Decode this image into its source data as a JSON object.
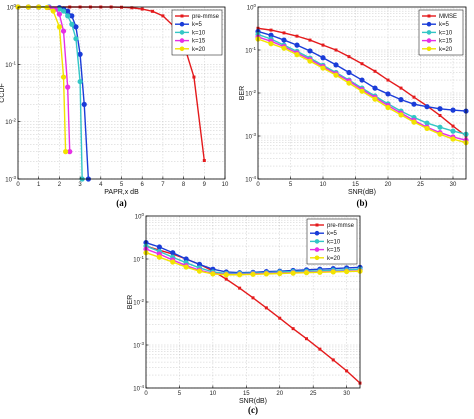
{
  "chart_data": [
    {
      "type": "line",
      "caption": "(a)",
      "xlabel": "PAPR,x dB",
      "ylabel": "CCDF",
      "xlim": [
        0,
        10
      ],
      "ylim": [
        0.001,
        1
      ],
      "yscale": "log",
      "xticks": [
        "0",
        "1",
        "2",
        "3",
        "4",
        "5",
        "6",
        "7",
        "8",
        "9",
        "10"
      ],
      "yticks": [
        {
          "v": 1,
          "base": "10",
          "exp": "0"
        },
        {
          "v": 0.1,
          "base": "10",
          "exp": "-1"
        },
        {
          "v": 0.01,
          "base": "10",
          "exp": "-2"
        },
        {
          "v": 0.001,
          "base": "10",
          "exp": "-3"
        }
      ],
      "grid": true,
      "legend_position": "top-right",
      "series": [
        {
          "name": "pre-mmse",
          "color": "#e41a1c",
          "marker": "square",
          "x": [
            0,
            0.5,
            1,
            1.5,
            2,
            2.5,
            3,
            3.5,
            4,
            4.5,
            5,
            5.5,
            6,
            6.5,
            7,
            7.5,
            8,
            8.5,
            9
          ],
          "y": [
            1,
            1,
            1,
            1,
            1,
            1,
            1,
            1,
            1,
            1,
            0.99,
            0.97,
            0.92,
            0.84,
            0.7,
            0.47,
            0.23,
            0.06,
            0.0021
          ]
        },
        {
          "name": "k=5",
          "color": "#1a3cd8",
          "marker": "circle",
          "x": [
            0,
            0.5,
            1,
            1.5,
            2,
            2.2,
            2.4,
            2.6,
            2.8,
            3,
            3.2,
            3.4
          ],
          "y": [
            1,
            1,
            1,
            1,
            0.97,
            0.93,
            0.85,
            0.7,
            0.45,
            0.15,
            0.02,
            0.001
          ]
        },
        {
          "name": "k=10",
          "color": "#33c6c6",
          "marker": "circle",
          "x": [
            0,
            0.5,
            1,
            1.5,
            2,
            2.2,
            2.4,
            2.6,
            2.8,
            3,
            3.1
          ],
          "y": [
            1,
            1,
            1,
            1,
            0.92,
            0.85,
            0.7,
            0.5,
            0.28,
            0.05,
            0.001
          ]
        },
        {
          "name": "k=15",
          "color": "#e62fe6",
          "marker": "circle",
          "x": [
            0,
            0.5,
            1,
            1.5,
            1.8,
            2,
            2.2,
            2.4,
            2.5
          ],
          "y": [
            1,
            1,
            1,
            0.98,
            0.92,
            0.75,
            0.38,
            0.04,
            0.003
          ]
        },
        {
          "name": "k=20",
          "color": "#f2e300",
          "marker": "circle",
          "x": [
            0,
            0.5,
            1,
            1.4,
            1.7,
            2,
            2.2,
            2.3
          ],
          "y": [
            1,
            1,
            1,
            0.98,
            0.85,
            0.45,
            0.06,
            0.003
          ]
        }
      ]
    },
    {
      "type": "line",
      "caption": "(b)",
      "xlabel": "SNR(dB)",
      "ylabel": "BER",
      "xlim": [
        0,
        32
      ],
      "ylim": [
        0.0001,
        1
      ],
      "yscale": "log",
      "xticks": [
        "0",
        "5",
        "10",
        "15",
        "20",
        "25",
        "30"
      ],
      "yticks": [
        {
          "v": 1,
          "base": "10",
          "exp": "0"
        },
        {
          "v": 0.1,
          "base": "10",
          "exp": "-1"
        },
        {
          "v": 0.01,
          "base": "10",
          "exp": "-2"
        },
        {
          "v": 0.001,
          "base": "10",
          "exp": "-3"
        },
        {
          "v": 0.0001,
          "base": "10",
          "exp": "-4"
        }
      ],
      "grid": true,
      "legend_position": "top-right",
      "series": [
        {
          "name": "MMSE",
          "color": "#e41a1c",
          "marker": "square",
          "x": [
            0,
            2,
            4,
            6,
            8,
            10,
            12,
            14,
            16,
            18,
            20,
            22,
            24,
            26,
            28,
            30,
            32
          ],
          "y": [
            0.32,
            0.29,
            0.25,
            0.21,
            0.17,
            0.13,
            0.1,
            0.07,
            0.048,
            0.032,
            0.02,
            0.013,
            0.008,
            0.005,
            0.003,
            0.0017,
            0.001
          ]
        },
        {
          "name": "k=5",
          "color": "#1a3cd8",
          "marker": "circle",
          "x": [
            0,
            2,
            4,
            6,
            8,
            10,
            12,
            14,
            16,
            18,
            20,
            22,
            24,
            26,
            28,
            30,
            32
          ],
          "y": [
            0.27,
            0.22,
            0.17,
            0.13,
            0.095,
            0.066,
            0.045,
            0.03,
            0.02,
            0.013,
            0.0095,
            0.007,
            0.0055,
            0.0048,
            0.0043,
            0.004,
            0.0038
          ]
        },
        {
          "name": "k=10",
          "color": "#33c6c6",
          "marker": "circle",
          "x": [
            0,
            2,
            4,
            6,
            8,
            10,
            12,
            14,
            16,
            18,
            20,
            22,
            24,
            26,
            28,
            30,
            32
          ],
          "y": [
            0.23,
            0.18,
            0.13,
            0.093,
            0.065,
            0.044,
            0.03,
            0.02,
            0.013,
            0.0085,
            0.0056,
            0.0038,
            0.0027,
            0.002,
            0.0016,
            0.0013,
            0.0011
          ]
        },
        {
          "name": "k=15",
          "color": "#e62fe6",
          "marker": "circle",
          "x": [
            0,
            2,
            4,
            6,
            8,
            10,
            12,
            14,
            16,
            18,
            20,
            22,
            24,
            26,
            28,
            30,
            32
          ],
          "y": [
            0.2,
            0.16,
            0.12,
            0.085,
            0.06,
            0.041,
            0.028,
            0.019,
            0.012,
            0.0079,
            0.0051,
            0.0034,
            0.0023,
            0.0016,
            0.0012,
            0.00095,
            0.0008
          ]
        },
        {
          "name": "k=20",
          "color": "#f2e300",
          "marker": "circle",
          "x": [
            0,
            2,
            4,
            6,
            8,
            10,
            12,
            14,
            16,
            18,
            20,
            22,
            24,
            26,
            28,
            30,
            32
          ],
          "y": [
            0.18,
            0.14,
            0.11,
            0.078,
            0.055,
            0.038,
            0.026,
            0.017,
            0.011,
            0.0072,
            0.0046,
            0.0031,
            0.0021,
            0.0015,
            0.0011,
            0.00085,
            0.0007
          ]
        }
      ]
    },
    {
      "type": "line",
      "caption": "(c)",
      "xlabel": "SNR(dB)",
      "ylabel": "BER",
      "xlim": [
        0,
        32
      ],
      "ylim": [
        0.0001,
        1
      ],
      "yscale": "log",
      "xticks": [
        "0",
        "5",
        "10",
        "15",
        "20",
        "25",
        "30"
      ],
      "yticks": [
        {
          "v": 1,
          "base": "10",
          "exp": "0"
        },
        {
          "v": 0.1,
          "base": "10",
          "exp": "-1"
        },
        {
          "v": 0.01,
          "base": "10",
          "exp": "-2"
        },
        {
          "v": 0.001,
          "base": "10",
          "exp": "-3"
        },
        {
          "v": 0.0001,
          "base": "10",
          "exp": "-4"
        }
      ],
      "grid": true,
      "legend_position": "top-right",
      "series": [
        {
          "name": "pre-mmse",
          "color": "#e41a1c",
          "marker": "square",
          "x": [
            0,
            2,
            4,
            6,
            8,
            10,
            12,
            14,
            16,
            18,
            20,
            22,
            24,
            26,
            28,
            30,
            32
          ],
          "y": [
            0.2,
            0.16,
            0.13,
            0.1,
            0.075,
            0.053,
            0.034,
            0.021,
            0.0125,
            0.0073,
            0.0042,
            0.0024,
            0.0014,
            0.0008,
            0.00045,
            0.00025,
            0.00013
          ]
        },
        {
          "name": "k=5",
          "color": "#1a3cd8",
          "marker": "circle",
          "x": [
            0,
            2,
            4,
            6,
            8,
            10,
            12,
            14,
            16,
            18,
            20,
            22,
            24,
            26,
            28,
            30,
            32
          ],
          "y": [
            0.24,
            0.19,
            0.14,
            0.1,
            0.075,
            0.058,
            0.05,
            0.048,
            0.049,
            0.051,
            0.052,
            0.054,
            0.056,
            0.058,
            0.06,
            0.062,
            0.064
          ]
        },
        {
          "name": "k=10",
          "color": "#33c6c6",
          "marker": "circle",
          "x": [
            0,
            2,
            4,
            6,
            8,
            10,
            12,
            14,
            16,
            18,
            20,
            22,
            24,
            26,
            28,
            30,
            32
          ],
          "y": [
            0.2,
            0.15,
            0.11,
            0.082,
            0.062,
            0.05,
            0.046,
            0.046,
            0.047,
            0.048,
            0.05,
            0.051,
            0.052,
            0.053,
            0.055,
            0.056,
            0.058
          ]
        },
        {
          "name": "k=15",
          "color": "#e62fe6",
          "marker": "circle",
          "x": [
            0,
            2,
            4,
            6,
            8,
            10,
            12,
            14,
            16,
            18,
            20,
            22,
            24,
            26,
            28,
            30,
            32
          ],
          "y": [
            0.17,
            0.13,
            0.095,
            0.07,
            0.055,
            0.046,
            0.044,
            0.044,
            0.045,
            0.046,
            0.047,
            0.048,
            0.049,
            0.05,
            0.051,
            0.052,
            0.053
          ]
        },
        {
          "name": "k=20",
          "color": "#f2e300",
          "marker": "circle",
          "x": [
            0,
            2,
            4,
            6,
            8,
            10,
            12,
            14,
            16,
            18,
            20,
            22,
            24,
            26,
            28,
            30,
            32
          ],
          "y": [
            0.14,
            0.11,
            0.085,
            0.065,
            0.052,
            0.045,
            0.043,
            0.043,
            0.044,
            0.045,
            0.046,
            0.047,
            0.048,
            0.049,
            0.05,
            0.051,
            0.052
          ]
        }
      ]
    }
  ]
}
